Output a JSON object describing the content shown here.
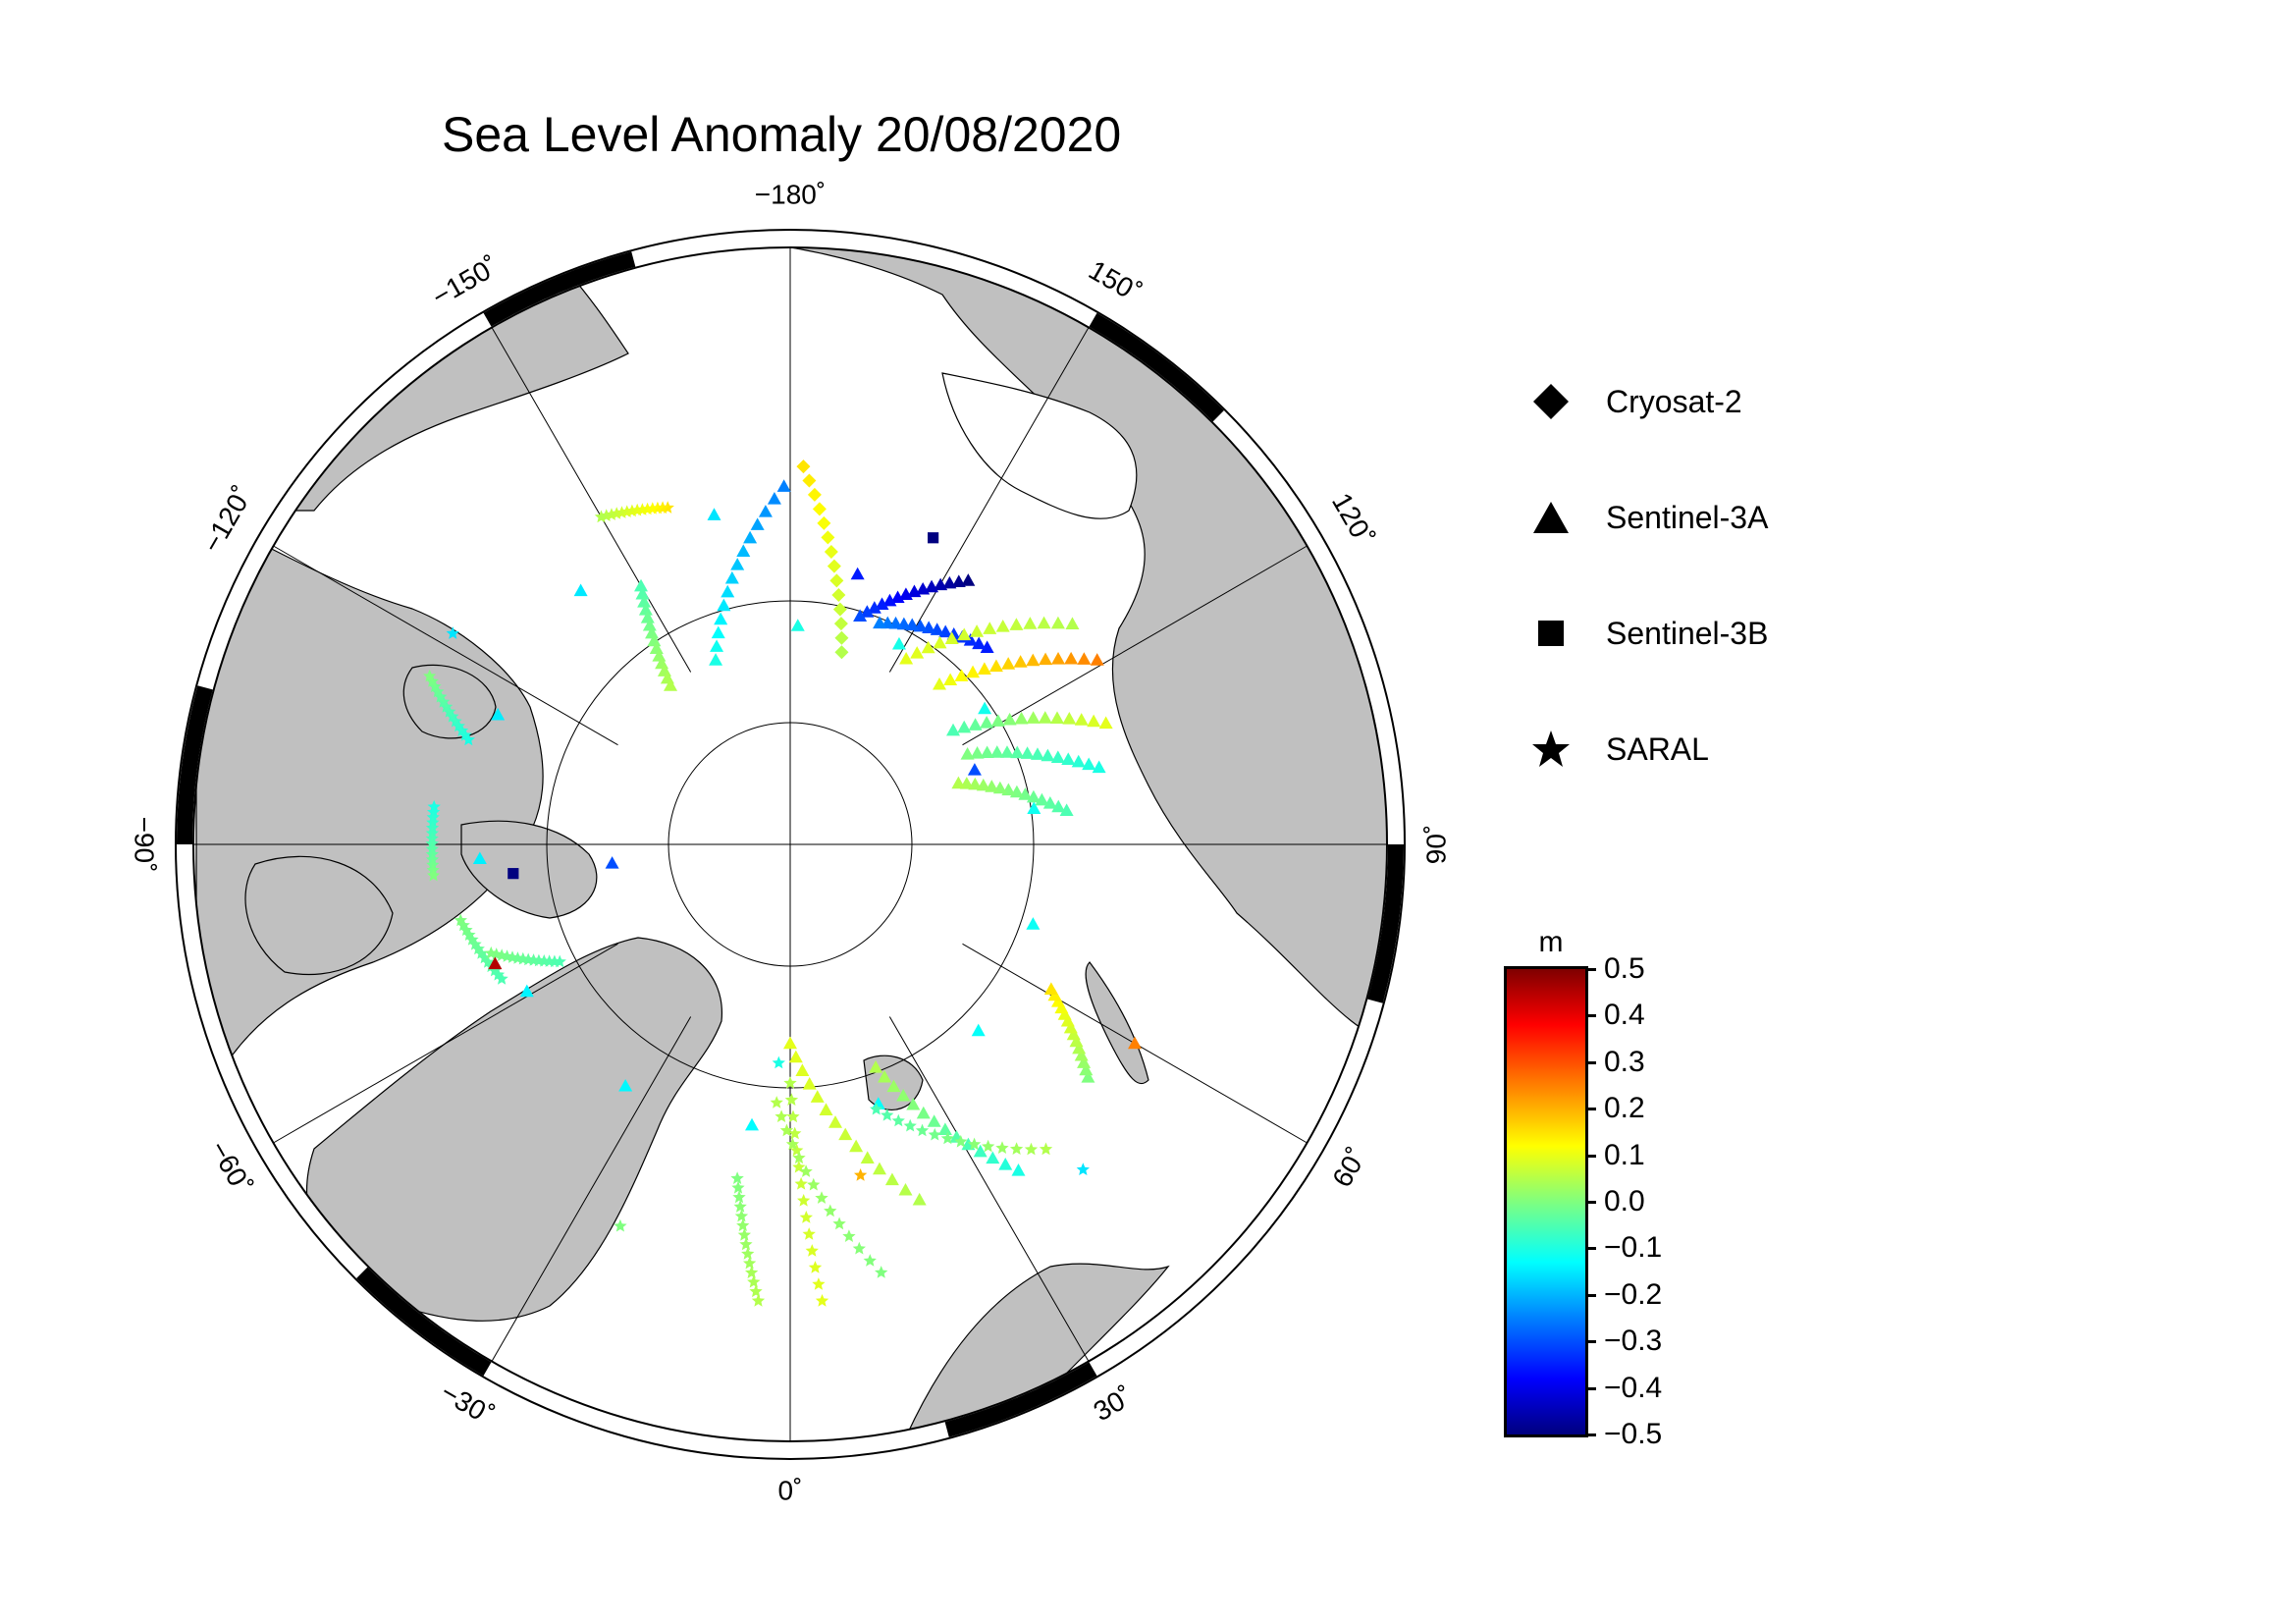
{
  "title": "Sea Level Anomaly 20/08/2020",
  "longitude_labels": [
    {
      "id": "lon-m180",
      "text": "−180˚",
      "deg": 180
    },
    {
      "id": "lon-150",
      "text": "150˚",
      "deg": 150
    },
    {
      "id": "lon-120",
      "text": "120˚",
      "deg": 120
    },
    {
      "id": "lon-90",
      "text": "90˚",
      "deg": 90
    },
    {
      "id": "lon-60",
      "text": "60˚",
      "deg": 60
    },
    {
      "id": "lon-30",
      "text": "30˚",
      "deg": 30
    },
    {
      "id": "lon-0",
      "text": "0˚",
      "deg": 0
    },
    {
      "id": "lon-m30",
      "text": "−30˚",
      "deg": -30
    },
    {
      "id": "lon-m60",
      "text": "−60˚",
      "deg": -60
    },
    {
      "id": "lon-m90",
      "text": "−90˚",
      "deg": -90
    },
    {
      "id": "lon-m120",
      "text": "−120˚",
      "deg": -120
    },
    {
      "id": "lon-m150",
      "text": "−150˚",
      "deg": -150
    }
  ],
  "legend": [
    {
      "label": "Cryosat-2",
      "symbol": "diamond"
    },
    {
      "label": "Sentinel-3A",
      "symbol": "triangle"
    },
    {
      "label": "Sentinel-3B",
      "symbol": "square"
    },
    {
      "label": "SARAL",
      "symbol": "star"
    }
  ],
  "colorbar": {
    "unit": "m",
    "ticks": [
      "0.5",
      "0.4",
      "0.3",
      "0.2",
      "0.1",
      "0.0",
      "−0.1",
      "−0.2",
      "−0.3",
      "−0.4",
      "−0.5"
    ],
    "min": -0.5,
    "max": 0.5,
    "colormap": "jet"
  },
  "colors": {
    "land": "#c0c0c0",
    "ocean": "#ffffff",
    "frame_black": "#000000"
  },
  "tracks": [
    {
      "satellite": "Cryosat-2",
      "symbol": "diamond",
      "from_lat": 71,
      "from_lon": 178,
      "to_lat": 80,
      "to_lon": 165,
      "sla_start": 0.15,
      "sla_end": 0.05
    },
    {
      "satellite": "Sentinel-3A",
      "symbol": "triangle",
      "from_lat": 72,
      "from_lon": -179,
      "to_lat": 80,
      "to_lon": -158,
      "sla_start": -0.25,
      "sla_end": -0.1
    },
    {
      "satellite": "Sentinel-3A",
      "symbol": "triangle",
      "from_lat": 73,
      "from_lon": -167,
      "to_lat": 79,
      "to_lon": 178,
      "sla_start": -0.15,
      "sla_end": -0.1
    },
    {
      "satellite": "Sentinel-3A",
      "symbol": "triangle",
      "from_lat": 75,
      "from_lon": -150,
      "to_lat": 80,
      "to_lon": -143,
      "sla_start": -0.05,
      "sla_end": 0.05
    },
    {
      "satellite": "Sentinel-3A",
      "symbol": "triangle",
      "from_lat": 74,
      "from_lon": 146,
      "to_lat": 78,
      "to_lon": 163,
      "sla_start": -0.5,
      "sla_end": -0.3
    },
    {
      "satellite": "Sentinel-3A",
      "symbol": "triangle",
      "from_lat": 76,
      "from_lon": 135,
      "to_lat": 78,
      "to_lon": 158,
      "sla_start": -0.35,
      "sla_end": -0.25
    },
    {
      "satellite": "Sentinel-3A",
      "symbol": "triangle",
      "from_lat": 72,
      "from_lon": 128,
      "to_lat": 79,
      "to_lon": 148,
      "sla_start": 0.05,
      "sla_end": 0.1
    },
    {
      "satellite": "Sentinel-3A",
      "symbol": "triangle",
      "from_lat": 72,
      "from_lon": 121,
      "to_lat": 79,
      "to_lon": 137,
      "sla_start": 0.25,
      "sla_end": 0.1
    },
    {
      "satellite": "Sentinel-3A",
      "symbol": "triangle",
      "from_lat": 73,
      "from_lon": 111,
      "to_lat": 80,
      "to_lon": 125,
      "sla_start": 0.1,
      "sla_end": -0.05
    },
    {
      "satellite": "Sentinel-3A",
      "symbol": "triangle",
      "from_lat": 74,
      "from_lon": 104,
      "to_lat": 80,
      "to_lon": 117,
      "sla_start": -0.1,
      "sla_end": 0.0
    },
    {
      "satellite": "Sentinel-3A",
      "symbol": "triangle",
      "from_lat": 76,
      "from_lon": 97,
      "to_lat": 81,
      "to_lon": 110,
      "sla_start": -0.05,
      "sla_end": 0.05
    },
    {
      "satellite": "Sentinel-3A",
      "symbol": "triangle",
      "from_lat": 71,
      "from_lon": 52,
      "to_lat": 75,
      "to_lon": 61,
      "sla_start": 0.0,
      "sla_end": 0.15
    },
    {
      "satellite": "Sentinel-3A",
      "symbol": "triangle",
      "from_lat": 70,
      "from_lon": 35,
      "to_lat": 78,
      "to_lon": 21,
      "sla_start": -0.1,
      "sla_end": 0.05
    },
    {
      "satellite": "Sentinel-3A",
      "symbol": "triangle",
      "from_lat": 71,
      "from_lon": 20,
      "to_lat": 80,
      "to_lon": 0,
      "sla_start": 0.05,
      "sla_end": 0.1
    },
    {
      "satellite": "SARAL",
      "symbol": "star",
      "from_lat": 67,
      "from_lon": 4,
      "to_lat": 78,
      "to_lon": 0,
      "sla_start": 0.1,
      "sla_end": 0.05
    },
    {
      "satellite": "SARAL",
      "symbol": "star",
      "from_lat": 67,
      "from_lon": -4,
      "to_lat": 73,
      "to_lon": -9,
      "sla_start": 0.05,
      "sla_end": 0.0
    },
    {
      "satellite": "SARAL",
      "symbol": "star",
      "from_lat": 68,
      "from_lon": 12,
      "to_lat": 77,
      "to_lon": -3,
      "sla_start": 0.0,
      "sla_end": 0.05
    },
    {
      "satellite": "SARAL",
      "symbol": "star",
      "from_lat": 70,
      "from_lon": 40,
      "to_lat": 76,
      "to_lon": 18,
      "sla_start": 0.05,
      "sla_end": -0.05
    },
    {
      "satellite": "SARAL",
      "symbol": "star",
      "from_lat": 73,
      "from_lon": -77,
      "to_lat": 74,
      "to_lon": -65,
      "sla_start": 0.0,
      "sla_end": -0.05
    },
    {
      "satellite": "SARAL",
      "symbol": "star",
      "from_lat": 72,
      "from_lon": -96,
      "to_lat": 72,
      "to_lon": -85,
      "sla_start": -0.1,
      "sla_end": 0.0
    },
    {
      "satellite": "SARAL",
      "symbol": "star",
      "from_lat": 72,
      "from_lon": -160,
      "to_lat": 71,
      "to_lon": -150,
      "sla_start": 0.15,
      "sla_end": 0.05
    },
    {
      "satellite": "SARAL",
      "symbol": "star",
      "from_lat": 73,
      "from_lon": -108,
      "to_lat": 70,
      "to_lon": -115,
      "sla_start": -0.1,
      "sla_end": 0.0
    },
    {
      "satellite": "SARAL",
      "symbol": "star",
      "from_lat": 77,
      "from_lon": -63,
      "to_lat": 74,
      "to_lon": -70,
      "sla_start": -0.05,
      "sla_end": 0.0
    }
  ],
  "singles": [
    {
      "satellite": "Sentinel-3B",
      "symbol": "square",
      "lat": 73,
      "lon": 155,
      "sla": -0.5
    },
    {
      "satellite": "Sentinel-3B",
      "symbol": "square",
      "lat": 76,
      "lon": -84,
      "sla": -0.5
    },
    {
      "satellite": "Sentinel-3A",
      "symbol": "triangle",
      "lat": 74,
      "lon": -68,
      "sla": 0.45
    },
    {
      "satellite": "Sentinel-3A",
      "symbol": "triangle",
      "lat": 80,
      "lon": 112,
      "sla": -0.3
    },
    {
      "satellite": "Sentinel-3A",
      "symbol": "triangle",
      "lat": 76,
      "lon": 166,
      "sla": -0.35
    },
    {
      "satellite": "Sentinel-3A",
      "symbol": "triangle",
      "lat": 81,
      "lon": -84,
      "sla": -0.3
    },
    {
      "satellite": "Sentinel-3A",
      "symbol": "triangle",
      "lat": 70,
      "lon": 60,
      "sla": 0.25
    },
    {
      "satellite": "SARAL",
      "symbol": "star",
      "lat": 68,
      "lon": 42,
      "sla": -0.15
    },
    {
      "satellite": "SARAL",
      "symbol": "star",
      "lat": 79,
      "lon": -3,
      "sla": -0.1
    },
    {
      "satellite": "SARAL",
      "symbol": "star",
      "lat": 70,
      "lon": -122,
      "sla": -0.15
    },
    {
      "satellite": "SARAL",
      "symbol": "star",
      "lat": 69,
      "lon": -24,
      "sla": 0.0
    },
    {
      "satellite": "SARAL",
      "symbol": "star",
      "lat": 73,
      "lon": 12,
      "sla": 0.2
    }
  ]
}
